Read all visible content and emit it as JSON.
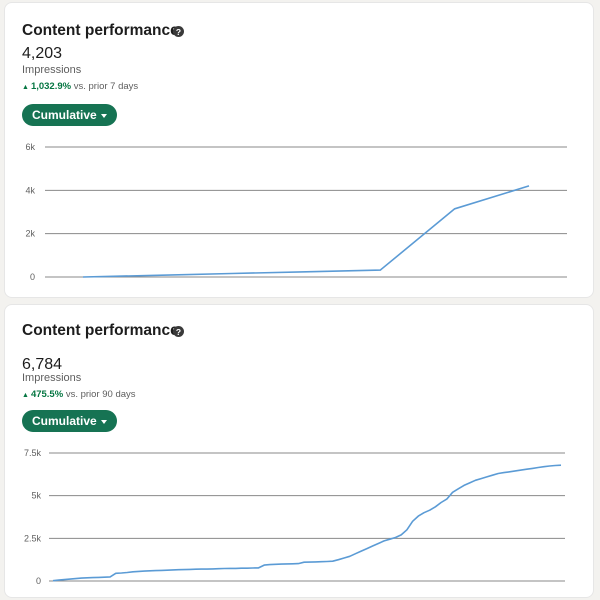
{
  "cards": [
    {
      "title": "Content performance",
      "help_icon": "question-circle-icon",
      "metric_value": "4,203",
      "metric_label": "Impressions",
      "delta_percent": "1,032.9%",
      "delta_text": "vs. prior 7 days",
      "dropdown_label": "Cumulative",
      "accent_color": "#167353",
      "chart_data": {
        "type": "line",
        "x": [
          0,
          1,
          2,
          3,
          4,
          5,
          6
        ],
        "series": [
          {
            "values": [
              0,
              80,
              160,
              240,
              320,
              3150,
              4203
            ]
          }
        ],
        "ylim": [
          0,
          6000
        ],
        "yticks": [
          0,
          2000,
          4000,
          6000
        ],
        "ytick_labels": [
          "0",
          "2k",
          "4k",
          "6k"
        ],
        "grid": true,
        "line_color": "#5b9bd5"
      }
    },
    {
      "title": "Content performance",
      "help_icon": "question-circle-icon",
      "metric_value": "6,784",
      "metric_label": "Impressions",
      "delta_percent": "475.5%",
      "delta_text": "vs. prior 90 days",
      "dropdown_label": "Cumulative",
      "accent_color": "#167353",
      "chart_data": {
        "type": "line",
        "x": [
          0,
          1,
          2,
          3,
          4,
          5,
          6,
          7,
          8,
          9,
          10,
          11,
          12,
          13,
          14,
          15,
          16,
          17,
          18,
          19,
          20,
          21,
          22,
          23,
          24,
          25,
          26,
          27,
          28,
          29,
          30,
          31,
          32,
          33,
          34,
          35,
          36,
          37,
          38,
          39,
          40,
          41,
          42,
          43,
          44,
          45,
          46,
          47,
          48,
          49,
          50,
          51,
          52,
          53,
          54,
          55,
          56,
          57,
          58,
          59,
          60,
          61,
          62,
          63,
          64,
          65,
          66,
          67,
          68,
          69,
          70,
          71,
          72,
          73,
          74,
          75,
          76,
          77,
          78,
          79,
          80,
          81,
          82,
          83,
          84,
          85,
          86,
          87,
          88,
          89
        ],
        "series": [
          {
            "values": [
              20,
              50,
              80,
              110,
              140,
              170,
              190,
              200,
              210,
              220,
              240,
              450,
              470,
              500,
              540,
              560,
              580,
              600,
              610,
              620,
              630,
              650,
              660,
              670,
              680,
              690,
              700,
              700,
              710,
              720,
              730,
              740,
              740,
              750,
              750,
              760,
              770,
              930,
              960,
              980,
              990,
              1000,
              1010,
              1020,
              1100,
              1110,
              1120,
              1130,
              1140,
              1160,
              1250,
              1350,
              1450,
              1600,
              1750,
              1900,
              2050,
              2200,
              2350,
              2450,
              2550,
              2700,
              3000,
              3500,
              3800,
              4000,
              4150,
              4350,
              4600,
              4800,
              5200,
              5400,
              5600,
              5750,
              5900,
              6000,
              6100,
              6200,
              6300,
              6350,
              6400,
              6450,
              6500,
              6550,
              6600,
              6650,
              6700,
              6740,
              6770,
              6784
            ]
          }
        ],
        "ylim": [
          0,
          7500
        ],
        "yticks": [
          0,
          2500,
          5000,
          7500
        ],
        "ytick_labels": [
          "0",
          "2.5k",
          "5k",
          "7.5k"
        ],
        "grid": true,
        "line_color": "#5b9bd5"
      }
    }
  ]
}
